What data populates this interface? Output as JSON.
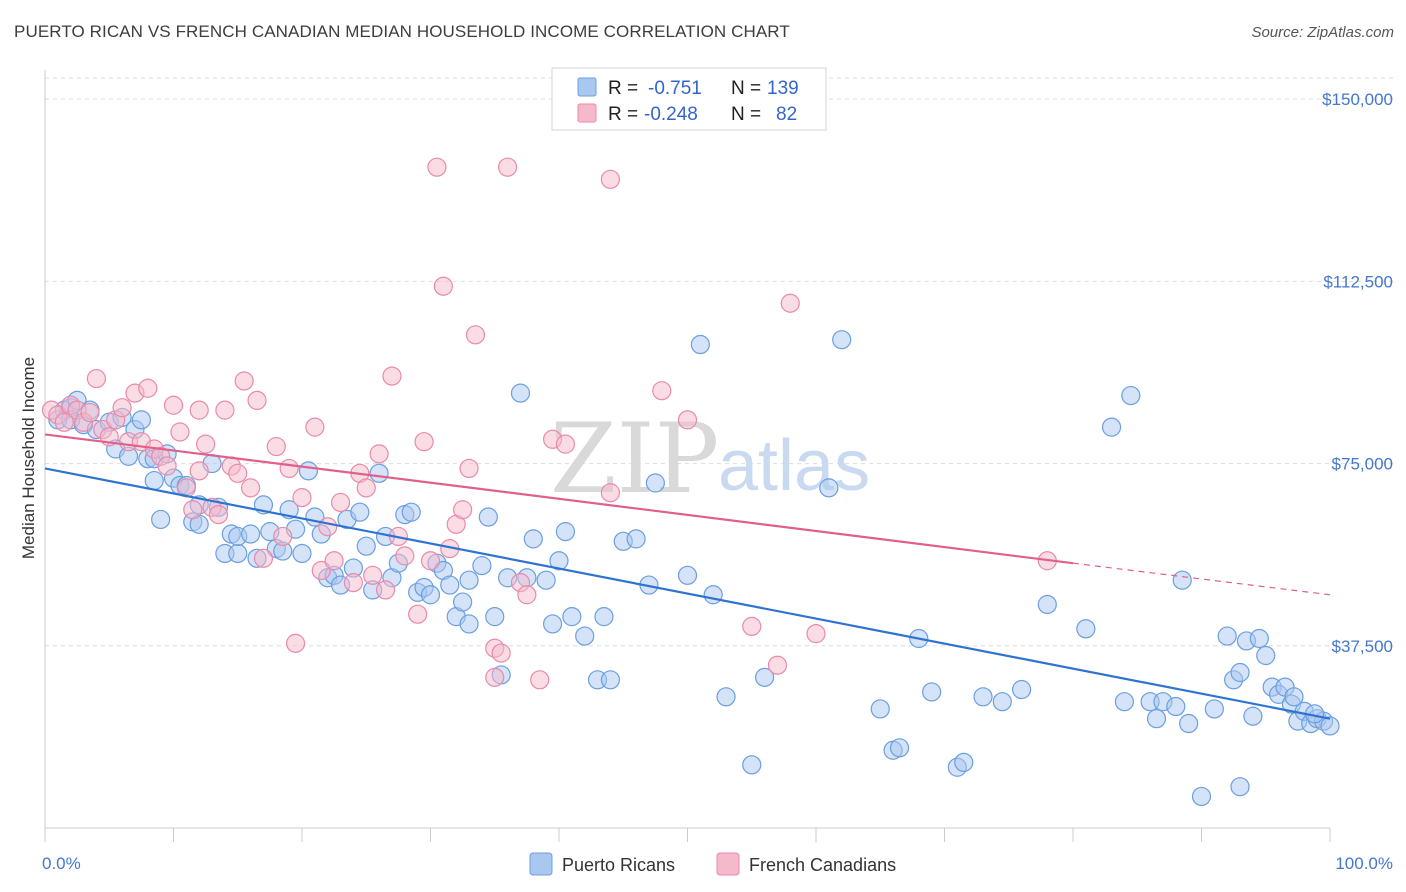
{
  "title": "PUERTO RICAN VS FRENCH CANADIAN MEDIAN HOUSEHOLD INCOME CORRELATION CHART",
  "source": "Source: ZipAtlas.com",
  "watermark": {
    "zip": "ZIP",
    "atlas": "atlas"
  },
  "colors": {
    "blue_fill": "#a9c8f0",
    "blue_stroke": "#6a9fe0",
    "blue_line": "#2f73d0",
    "pink_fill": "#f6b9cc",
    "pink_stroke": "#e98aaa",
    "pink_line": "#e0608c",
    "grid": "#dddddd",
    "tick_text": "#4477cc"
  },
  "legend_top": {
    "rows": [
      {
        "r_label": "R =",
        "r_value": "-0.751",
        "n_label": "N =",
        "n_value": "139"
      },
      {
        "r_label": "R =",
        "r_value": "-0.248",
        "n_label": "N =",
        "n_value": "82"
      }
    ]
  },
  "legend_bottom": [
    "Puerto Ricans",
    "French Canadians"
  ],
  "chart_data": {
    "type": "scatter",
    "ylabel": "Median Household Income",
    "xlim": [
      0,
      100
    ],
    "ylim": [
      0,
      156000
    ],
    "x_tick_labels": [
      "0.0%",
      "100.0%"
    ],
    "y_ticks": [
      37500,
      75000,
      112500,
      150000
    ],
    "y_tick_labels": [
      "$37,500",
      "$75,000",
      "$112,500",
      "$150,000"
    ],
    "grid": "horizontal dashed",
    "legend": "top-center",
    "series": [
      {
        "name": "Puerto Ricans",
        "trend": {
          "x0": 0,
          "y0": 74000,
          "x1": 100,
          "y1": 22500
        },
        "points": [
          [
            1,
            84000
          ],
          [
            1.5,
            86000
          ],
          [
            2,
            86500
          ],
          [
            2,
            84000
          ],
          [
            2.5,
            88000
          ],
          [
            3,
            83000
          ],
          [
            3.5,
            86000
          ],
          [
            4,
            82000
          ],
          [
            5,
            83500
          ],
          [
            5.5,
            78000
          ],
          [
            6,
            84500
          ],
          [
            6.5,
            76500
          ],
          [
            7,
            82000
          ],
          [
            7.5,
            84000
          ],
          [
            8,
            76000
          ],
          [
            8.5,
            76000
          ],
          [
            8.5,
            71500
          ],
          [
            9,
            63500
          ],
          [
            9.5,
            77000
          ],
          [
            10,
            72000
          ],
          [
            10.5,
            70500
          ],
          [
            11,
            70500
          ],
          [
            11.5,
            63000
          ],
          [
            12,
            66500
          ],
          [
            12,
            62500
          ],
          [
            13,
            75000
          ],
          [
            13.5,
            66000
          ],
          [
            14,
            56500
          ],
          [
            14.5,
            60500
          ],
          [
            15,
            56500
          ],
          [
            15,
            60000
          ],
          [
            16,
            60500
          ],
          [
            16.5,
            55500
          ],
          [
            17,
            66500
          ],
          [
            17.5,
            61000
          ],
          [
            18,
            57500
          ],
          [
            18.5,
            57000
          ],
          [
            19,
            65500
          ],
          [
            19.5,
            61500
          ],
          [
            20,
            56500
          ],
          [
            20.5,
            73500
          ],
          [
            21,
            64000
          ],
          [
            21.5,
            60500
          ],
          [
            22,
            51500
          ],
          [
            22.5,
            52000
          ],
          [
            23,
            50000
          ],
          [
            23.5,
            63500
          ],
          [
            24,
            53500
          ],
          [
            24.5,
            65000
          ],
          [
            25,
            58000
          ],
          [
            25.5,
            49000
          ],
          [
            26,
            73000
          ],
          [
            26.5,
            60000
          ],
          [
            27,
            51500
          ],
          [
            27.5,
            54500
          ],
          [
            28,
            64500
          ],
          [
            28.5,
            65000
          ],
          [
            29,
            48500
          ],
          [
            29.5,
            49500
          ],
          [
            30,
            48000
          ],
          [
            30.5,
            54500
          ],
          [
            31,
            53000
          ],
          [
            31.5,
            50000
          ],
          [
            32,
            43500
          ],
          [
            32.5,
            46500
          ],
          [
            33,
            42000
          ],
          [
            33,
            51000
          ],
          [
            34,
            54000
          ],
          [
            34.5,
            64000
          ],
          [
            35,
            43500
          ],
          [
            35.5,
            31500
          ],
          [
            36,
            51500
          ],
          [
            37,
            89500
          ],
          [
            37.5,
            51500
          ],
          [
            38,
            59500
          ],
          [
            39,
            51000
          ],
          [
            39.5,
            42000
          ],
          [
            40,
            55000
          ],
          [
            40.5,
            61000
          ],
          [
            41,
            43500
          ],
          [
            42,
            39500
          ],
          [
            43,
            30500
          ],
          [
            43.5,
            43500
          ],
          [
            44,
            30500
          ],
          [
            45,
            59000
          ],
          [
            46,
            59500
          ],
          [
            47,
            50000
          ],
          [
            47.5,
            71000
          ],
          [
            50,
            52000
          ],
          [
            51,
            99500
          ],
          [
            52,
            48000
          ],
          [
            53,
            27000
          ],
          [
            55,
            13000
          ],
          [
            56,
            31000
          ],
          [
            61,
            70000
          ],
          [
            62,
            100500
          ],
          [
            65,
            24500
          ],
          [
            66,
            16000
          ],
          [
            66.5,
            16500
          ],
          [
            68,
            39000
          ],
          [
            69,
            28000
          ],
          [
            71,
            12500
          ],
          [
            71.5,
            13500
          ],
          [
            73,
            27000
          ],
          [
            74.5,
            26000
          ],
          [
            76,
            28500
          ],
          [
            78,
            46000
          ],
          [
            81,
            41000
          ],
          [
            83,
            82500
          ],
          [
            84,
            26000
          ],
          [
            84.5,
            89000
          ],
          [
            86,
            26000
          ],
          [
            86.5,
            22500
          ],
          [
            87,
            26000
          ],
          [
            88,
            25000
          ],
          [
            88.5,
            51000
          ],
          [
            89,
            21500
          ],
          [
            90,
            6500
          ],
          [
            91,
            24500
          ],
          [
            92,
            39500
          ],
          [
            92.5,
            30500
          ],
          [
            93,
            32000
          ],
          [
            93.5,
            38500
          ],
          [
            93,
            8500
          ],
          [
            94,
            23000
          ],
          [
            94.5,
            39000
          ],
          [
            95,
            35500
          ],
          [
            95.5,
            29000
          ],
          [
            96,
            27500
          ],
          [
            96.5,
            29000
          ],
          [
            97,
            25500
          ],
          [
            97.5,
            22000
          ],
          [
            98,
            24000
          ],
          [
            98.5,
            21500
          ],
          [
            99,
            22500
          ],
          [
            99.5,
            22000
          ],
          [
            100,
            21000
          ],
          [
            97.2,
            27000
          ],
          [
            98.8,
            23500
          ]
        ]
      },
      {
        "name": "French Canadians",
        "trend": {
          "x0": 0,
          "y0": 81000,
          "x1": 80,
          "y1": 54500,
          "dash_x1": 100,
          "dash_y1": 48000
        },
        "points": [
          [
            0.5,
            86000
          ],
          [
            1,
            85000
          ],
          [
            1.5,
            83500
          ],
          [
            2,
            87000
          ],
          [
            2.5,
            86000
          ],
          [
            3,
            83500
          ],
          [
            3.5,
            85500
          ],
          [
            4,
            92500
          ],
          [
            4.5,
            82000
          ],
          [
            5,
            80500
          ],
          [
            5.5,
            84000
          ],
          [
            6,
            86500
          ],
          [
            6.5,
            79500
          ],
          [
            7,
            89500
          ],
          [
            7.5,
            79500
          ],
          [
            8,
            90500
          ],
          [
            8.5,
            78000
          ],
          [
            9,
            76500
          ],
          [
            9.5,
            74500
          ],
          [
            10,
            87000
          ],
          [
            10.5,
            81500
          ],
          [
            11,
            70000
          ],
          [
            11.5,
            65500
          ],
          [
            12,
            73500
          ],
          [
            12,
            86000
          ],
          [
            12.5,
            79000
          ],
          [
            13,
            66000
          ],
          [
            13.5,
            64500
          ],
          [
            14,
            86000
          ],
          [
            14.5,
            74500
          ],
          [
            15,
            73000
          ],
          [
            15.5,
            92000
          ],
          [
            16,
            70000
          ],
          [
            16.5,
            88000
          ],
          [
            17,
            55500
          ],
          [
            18,
            78500
          ],
          [
            18.5,
            60000
          ],
          [
            19,
            74000
          ],
          [
            19.5,
            38000
          ],
          [
            20,
            68000
          ],
          [
            21,
            82500
          ],
          [
            21.5,
            53000
          ],
          [
            22,
            62000
          ],
          [
            22.5,
            55000
          ],
          [
            23,
            67000
          ],
          [
            24,
            50500
          ],
          [
            24.5,
            73000
          ],
          [
            25,
            70000
          ],
          [
            25.5,
            52000
          ],
          [
            26,
            77000
          ],
          [
            26.5,
            49000
          ],
          [
            27,
            93000
          ],
          [
            27.5,
            60000
          ],
          [
            28,
            56000
          ],
          [
            29,
            44000
          ],
          [
            29.5,
            79500
          ],
          [
            30,
            55000
          ],
          [
            30.5,
            136000
          ],
          [
            31,
            111500
          ],
          [
            31.5,
            57500
          ],
          [
            32,
            62500
          ],
          [
            32.5,
            65500
          ],
          [
            33,
            74000
          ],
          [
            33.5,
            101500
          ],
          [
            35,
            37000
          ],
          [
            35.5,
            36000
          ],
          [
            35,
            31000
          ],
          [
            36,
            136000
          ],
          [
            37,
            50500
          ],
          [
            37.5,
            48000
          ],
          [
            38.5,
            30500
          ],
          [
            39.5,
            80000
          ],
          [
            40.5,
            79000
          ],
          [
            44,
            69000
          ],
          [
            44,
            133500
          ],
          [
            48,
            90000
          ],
          [
            50,
            84000
          ],
          [
            55,
            41500
          ],
          [
            57,
            33500
          ],
          [
            58,
            108000
          ],
          [
            60,
            40000
          ],
          [
            78,
            55000
          ]
        ]
      }
    ]
  }
}
